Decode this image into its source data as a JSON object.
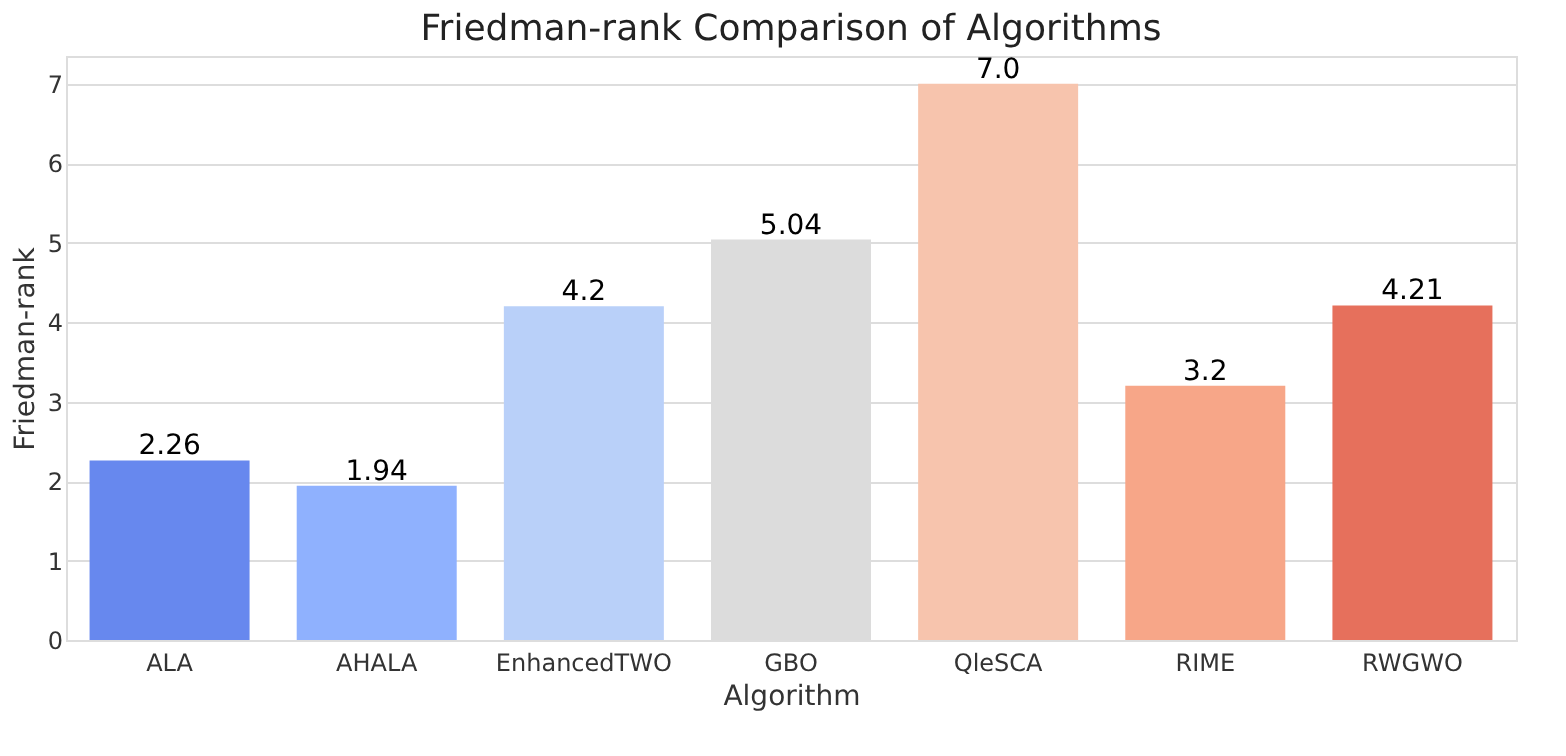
{
  "chart_data": {
    "type": "bar",
    "title": "Friedman-rank Comparison of Algorithms",
    "xlabel": "Algorithm",
    "ylabel": "Friedman-rank",
    "categories": [
      "ALA",
      "AHALA",
      "EnhancedTWO",
      "GBO",
      "QleSCA",
      "RIME",
      "RWGWO"
    ],
    "values": [
      2.26,
      1.94,
      4.2,
      5.04,
      7.0,
      3.2,
      4.21
    ],
    "value_labels": [
      "2.26",
      "1.94",
      "4.2",
      "5.04",
      "7.0",
      "3.2",
      "4.21"
    ],
    "colors": [
      "#6788ee",
      "#8fb1fe",
      "#b9d0f9",
      "#dcdcdc",
      "#f7c4ad",
      "#f7a688",
      "#e6705c"
    ],
    "ylim": [
      0,
      7.35
    ],
    "yticks": [
      0,
      1,
      2,
      3,
      4,
      5,
      6,
      7
    ],
    "grid": "y"
  }
}
